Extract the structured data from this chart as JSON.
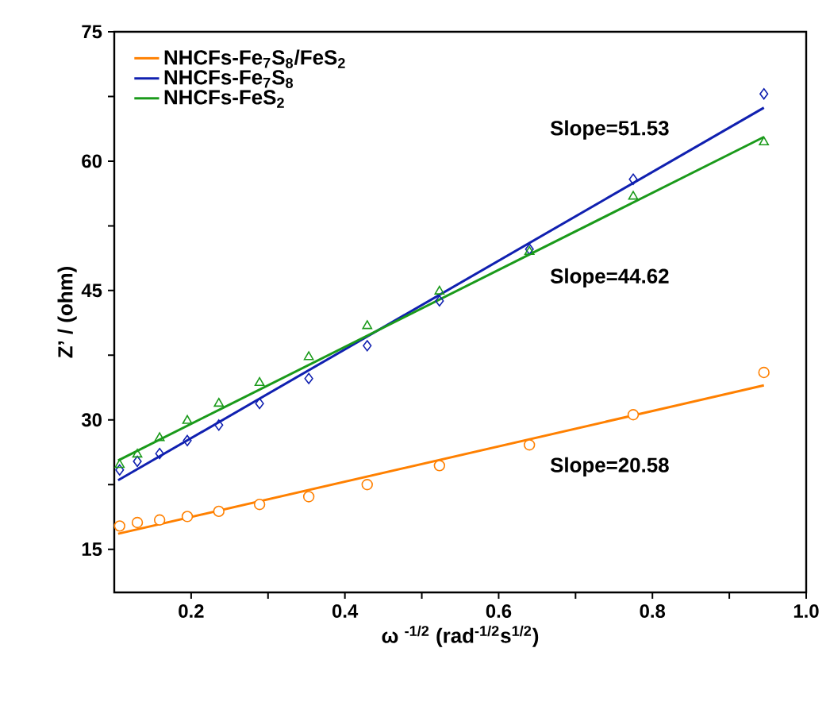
{
  "chart_data": {
    "type": "scatter",
    "xlabel": "ω $^{-1/2}$ (rad$^{-1/2}$s$^{1/2}$)",
    "ylabel": "Z’ / (ohm)",
    "xlim": [
      0.1,
      1.0
    ],
    "ylim": [
      10,
      75
    ],
    "xticks": [
      0.2,
      {
        "value": 0.3,
        "label": null
      },
      0.4,
      {
        "value": 0.5,
        "label": null
      },
      0.6,
      {
        "value": 0.7,
        "label": null
      },
      0.8,
      {
        "value": 0.9,
        "label": null
      },
      {
        "value": 1.0,
        "label": "1.0"
      }
    ],
    "yticks": [
      15,
      {
        "value": 22.5,
        "label": null
      },
      30,
      {
        "value": 37.5,
        "label": null
      },
      45,
      {
        "value": 52.5,
        "label": null
      },
      60,
      {
        "value": 67.5,
        "label": null
      },
      75
    ],
    "legend": "top left",
    "grid": false,
    "series": [
      {
        "name": "NHCFs-Fe$_{7}$S$_{8}$/FeS$_{2}$",
        "type": "line",
        "marker": "none",
        "color": "#ff8000",
        "x": [
          0.105,
          0.945
        ],
        "values": [
          16.8,
          34.0
        ]
      },
      {
        "name": "NHCFs-Fe$_{7}$S$_{8}$",
        "type": "line",
        "marker": "none",
        "color": "#1020b0",
        "x": [
          0.105,
          0.945
        ],
        "values": [
          23.0,
          66.2
        ]
      },
      {
        "name": "NHCFs-FeS$_{2}$",
        "type": "line",
        "marker": "none",
        "color": "#1a9a1a",
        "x": [
          0.105,
          0.945
        ],
        "values": [
          25.3,
          62.8
        ]
      },
      {
        "marker": "circle",
        "color": "#ff8000",
        "x": [
          0.107,
          0.13,
          0.159,
          0.195,
          0.236,
          0.289,
          0.353,
          0.429,
          0.523,
          0.64,
          0.775,
          0.945
        ],
        "values": [
          17.7,
          18.1,
          18.4,
          18.8,
          19.4,
          20.2,
          21.1,
          22.5,
          24.7,
          27.1,
          30.6,
          35.5
        ]
      },
      {
        "marker": "diamond",
        "color": "#1020b0",
        "x": [
          0.107,
          0.13,
          0.159,
          0.195,
          0.236,
          0.289,
          0.353,
          0.429,
          0.523,
          0.64,
          0.775,
          0.945
        ],
        "values": [
          24.2,
          25.2,
          26.1,
          27.6,
          29.4,
          31.9,
          34.8,
          38.6,
          43.8,
          49.8,
          57.9,
          67.8
        ]
      },
      {
        "marker": "triangle",
        "color": "#1a9a1a",
        "x": [
          0.107,
          0.13,
          0.159,
          0.195,
          0.236,
          0.289,
          0.353,
          0.429,
          0.523,
          0.64,
          0.775,
          0.945
        ],
        "values": [
          24.8,
          26.0,
          27.9,
          29.9,
          31.9,
          34.3,
          37.3,
          40.9,
          44.9,
          49.5,
          55.9,
          62.2
        ]
      }
    ],
    "annotations": [
      "Slope=51.53",
      "Slope=44.62",
      "Slope=20.58"
    ]
  }
}
